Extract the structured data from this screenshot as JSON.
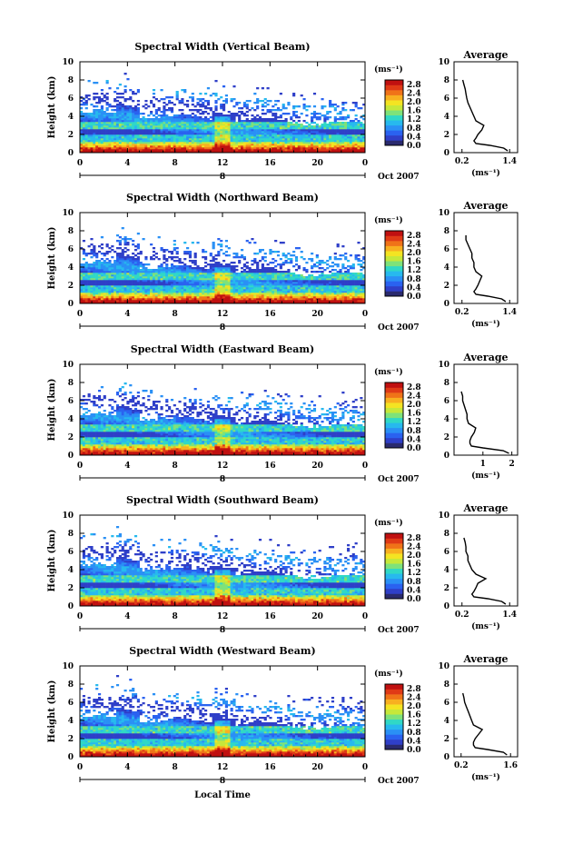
{
  "figure": {
    "xlabel": "Local Time",
    "date_label": "Oct 2007",
    "day_marker": "8",
    "ylabel": "Height (km)",
    "colorbar_unit": "(ms⁻¹)",
    "profile_title": "Average",
    "profile_xlabel": "(ms⁻¹)"
  },
  "colorbar": {
    "ticks": [
      "0.0",
      "0.4",
      "0.8",
      "1.2",
      "1.6",
      "2.0",
      "2.4",
      "2.8"
    ],
    "colors": [
      "#2a2a6e",
      "#2f3fc8",
      "#2a62f0",
      "#2a90f5",
      "#27b9ee",
      "#30d8c6",
      "#7ee27a",
      "#c6e83a",
      "#f4e422",
      "#f8b020",
      "#f07318",
      "#e03a16",
      "#c01010"
    ]
  },
  "chart_data": [
    {
      "type": "heatmap",
      "title": "Spectral Width (Vertical Beam)",
      "x_ticks": [
        "0",
        "4",
        "8",
        "12",
        "16",
        "20",
        "0"
      ],
      "xlim": [
        0,
        24
      ],
      "y_ticks": [
        "0",
        "2",
        "4",
        "6",
        "8",
        "10"
      ],
      "ylim": [
        0,
        10
      ],
      "clim": [
        0,
        3.0
      ],
      "profile": {
        "title": "Average",
        "x_ticks": [
          "0.2",
          "1.4"
        ],
        "xlim": [
          0,
          1.6
        ],
        "heights": [
          0.2,
          0.5,
          0.8,
          1.0,
          1.3,
          1.6,
          2.0,
          2.5,
          3.0,
          3.5,
          4.0,
          4.5,
          5.0,
          5.5,
          6.0,
          6.5,
          7.0,
          7.5,
          8.0
        ],
        "values": [
          1.35,
          1.25,
          0.9,
          0.55,
          0.5,
          0.55,
          0.6,
          0.7,
          0.75,
          0.55,
          0.5,
          0.45,
          0.4,
          0.35,
          0.32,
          0.3,
          0.28,
          0.25,
          0.22
        ]
      }
    },
    {
      "type": "heatmap",
      "title": "Spectral Width (Northward Beam)",
      "x_ticks": [
        "0",
        "4",
        "8",
        "12",
        "16",
        "20",
        "0"
      ],
      "xlim": [
        0,
        24
      ],
      "y_ticks": [
        "0",
        "2",
        "4",
        "6",
        "8",
        "10"
      ],
      "ylim": [
        0,
        10
      ],
      "clim": [
        0,
        3.0
      ],
      "profile": {
        "title": "Average",
        "x_ticks": [
          "0.2",
          "1.4"
        ],
        "xlim": [
          0,
          1.6
        ],
        "heights": [
          0.2,
          0.5,
          0.8,
          1.0,
          1.3,
          1.6,
          2.0,
          2.5,
          3.0,
          3.5,
          4.0,
          4.5,
          5.0,
          5.5,
          6.0,
          6.5,
          7.0,
          7.5
        ],
        "values": [
          1.3,
          1.2,
          0.85,
          0.55,
          0.5,
          0.55,
          0.6,
          0.65,
          0.7,
          0.55,
          0.5,
          0.5,
          0.45,
          0.45,
          0.4,
          0.35,
          0.3,
          0.3
        ]
      }
    },
    {
      "type": "heatmap",
      "title": "Spectral Width (Eastward Beam)",
      "x_ticks": [
        "0",
        "4",
        "8",
        "12",
        "16",
        "20",
        "0"
      ],
      "xlim": [
        0,
        24
      ],
      "y_ticks": [
        "0",
        "2",
        "4",
        "6",
        "8",
        "10"
      ],
      "ylim": [
        0,
        10
      ],
      "clim": [
        0,
        3.0
      ],
      "profile": {
        "title": "Average",
        "x_ticks": [
          "1",
          "2"
        ],
        "xlim": [
          0,
          2.2
        ],
        "heights": [
          0.2,
          0.5,
          0.8,
          1.0,
          1.3,
          1.6,
          2.0,
          2.5,
          3.0,
          3.5,
          4.0,
          4.5,
          5.0,
          5.5,
          6.0,
          6.5,
          7.0
        ],
        "values": [
          1.9,
          1.7,
          1.0,
          0.6,
          0.55,
          0.55,
          0.6,
          0.7,
          0.75,
          0.5,
          0.45,
          0.45,
          0.4,
          0.35,
          0.3,
          0.3,
          0.25
        ]
      }
    },
    {
      "type": "heatmap",
      "title": "Spectral Width (Southward Beam)",
      "x_ticks": [
        "0",
        "4",
        "8",
        "12",
        "16",
        "20",
        "0"
      ],
      "xlim": [
        0,
        24
      ],
      "y_ticks": [
        "0",
        "2",
        "4",
        "6",
        "8",
        "10"
      ],
      "ylim": [
        0,
        10
      ],
      "clim": [
        0,
        3.0
      ],
      "profile": {
        "title": "Average",
        "x_ticks": [
          "0.2",
          "1.4"
        ],
        "xlim": [
          0,
          1.6
        ],
        "heights": [
          0.2,
          0.5,
          0.8,
          1.0,
          1.3,
          1.6,
          2.0,
          2.5,
          3.0,
          3.5,
          4.0,
          4.5,
          5.0,
          5.5,
          6.0,
          6.5,
          7.0,
          7.5
        ],
        "values": [
          1.3,
          1.2,
          0.85,
          0.5,
          0.45,
          0.5,
          0.55,
          0.6,
          0.8,
          0.55,
          0.45,
          0.4,
          0.35,
          0.35,
          0.3,
          0.3,
          0.28,
          0.25
        ]
      }
    },
    {
      "type": "heatmap",
      "title": "Spectral Width (Westward Beam)",
      "x_ticks": [
        "0",
        "4",
        "8",
        "12",
        "16",
        "20",
        "0"
      ],
      "xlim": [
        0,
        24
      ],
      "y_ticks": [
        "0",
        "2",
        "4",
        "6",
        "8",
        "10"
      ],
      "ylim": [
        0,
        10
      ],
      "clim": [
        0,
        3.0
      ],
      "profile": {
        "title": "Average",
        "x_ticks": [
          "0.2",
          "1.6"
        ],
        "xlim": [
          0,
          1.8
        ],
        "heights": [
          0.2,
          0.5,
          0.8,
          1.0,
          1.3,
          1.6,
          2.0,
          2.5,
          3.0,
          3.5,
          4.0,
          4.5,
          5.0,
          5.5,
          6.0,
          6.5,
          7.0
        ],
        "values": [
          1.5,
          1.4,
          0.95,
          0.6,
          0.55,
          0.55,
          0.6,
          0.7,
          0.8,
          0.55,
          0.5,
          0.45,
          0.4,
          0.35,
          0.3,
          0.28,
          0.25
        ]
      }
    }
  ]
}
